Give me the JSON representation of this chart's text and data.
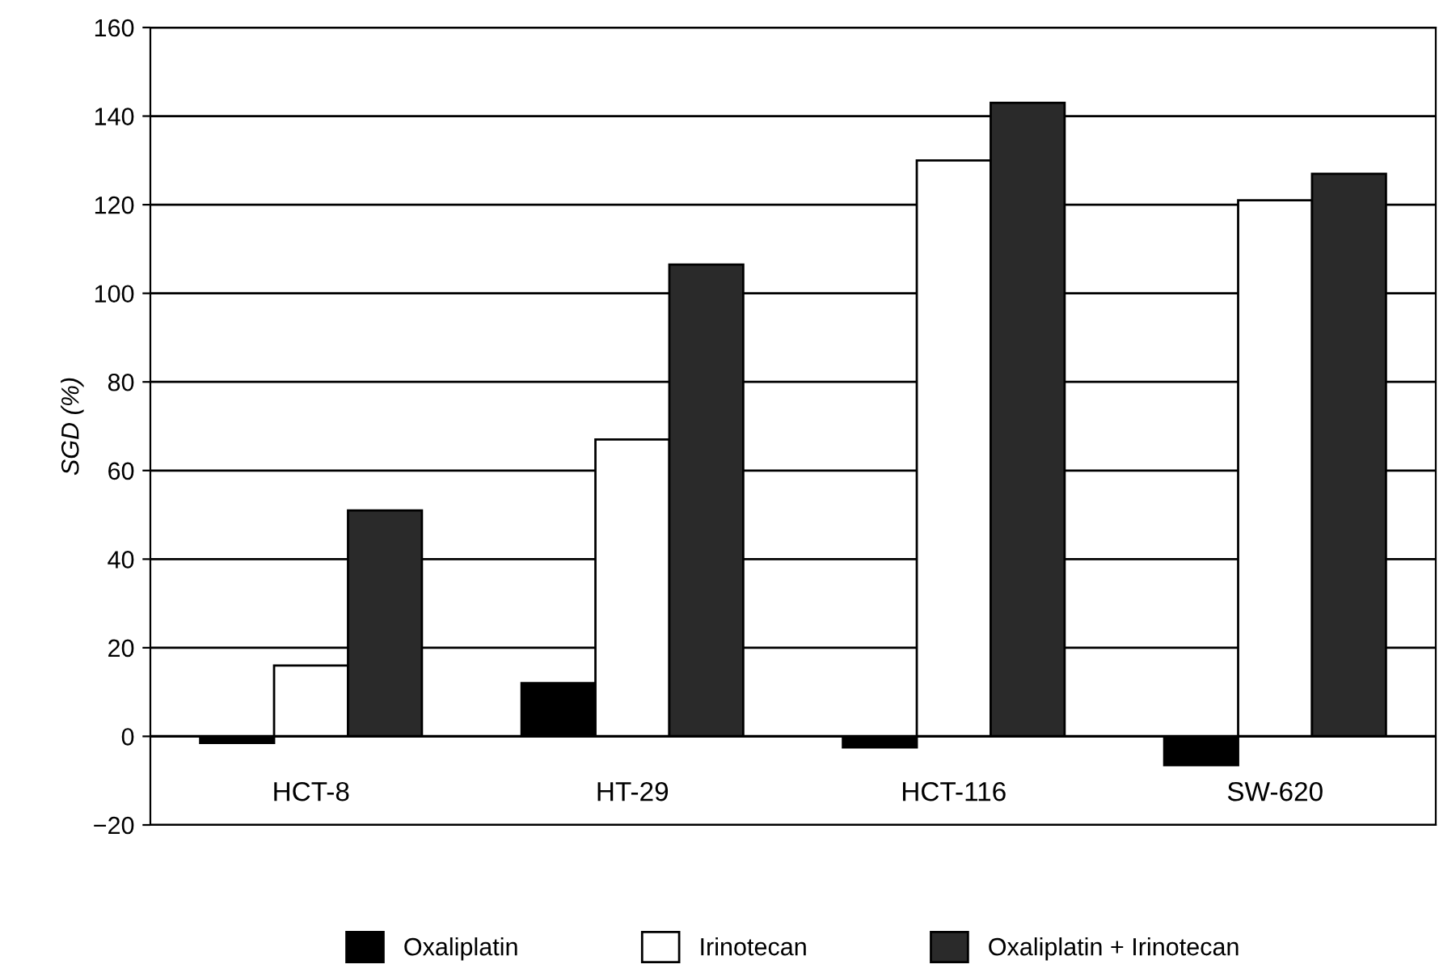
{
  "chart_data": {
    "type": "bar",
    "ylabel": "SGD (%)",
    "categories": [
      "HCT-8",
      "HT-29",
      "HCT-116",
      "SW-620"
    ],
    "series": [
      {
        "name": "Oxaliplatin",
        "color": "#000000",
        "values": [
          -1.5,
          12,
          -2.5,
          -6.5
        ]
      },
      {
        "name": "Irinotecan",
        "color": "#ffffff",
        "values": [
          16,
          67,
          130,
          121
        ]
      },
      {
        "name": "Oxaliplatin + Irinotecan",
        "color": "#2a2a2a",
        "values": [
          51,
          106.5,
          143,
          127
        ]
      }
    ],
    "ylim": [
      -20,
      160
    ],
    "yticks": [
      {
        "value": -20,
        "label": "−20"
      },
      0,
      20,
      40,
      60,
      80,
      100,
      120,
      140,
      160
    ],
    "grid": "y",
    "legend": "bottom"
  }
}
